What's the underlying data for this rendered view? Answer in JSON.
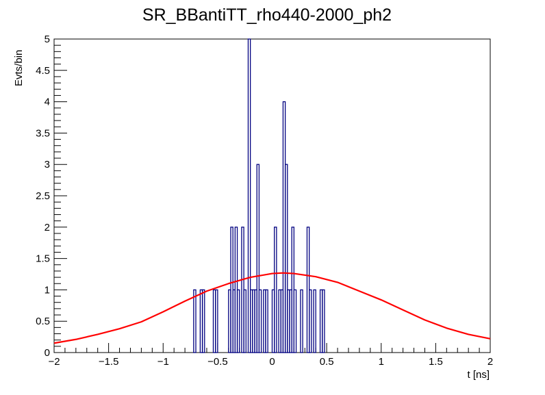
{
  "chart_data": {
    "type": "histogram",
    "title": "SR_BBantiTT_rho440-2000_ph2",
    "xlabel": "t [ns]",
    "ylabel": "Evts/bin",
    "xlim": [
      -2,
      2
    ],
    "ylim": [
      0,
      5
    ],
    "x_ticks": [
      -2,
      -1.5,
      -1,
      -0.5,
      0,
      0.5,
      1,
      1.5,
      2
    ],
    "x_tick_labels": [
      "−2",
      "−1.5",
      "−1",
      "−0.5",
      "0",
      "0.5",
      "1",
      "1.5",
      "2"
    ],
    "y_ticks": [
      0,
      0.5,
      1,
      1.5,
      2,
      2.5,
      3,
      3.5,
      4,
      4.5,
      5
    ],
    "y_tick_labels": [
      "0",
      "0.5",
      "1",
      "1.5",
      "2",
      "2.5",
      "3",
      "3.5",
      "4",
      "4.5",
      "5"
    ],
    "grid": false,
    "legend": "none",
    "bin_width": 0.02,
    "bin_low_edges": [
      -0.72,
      -0.7,
      -0.68,
      -0.66,
      -0.64,
      -0.62,
      -0.6,
      -0.58,
      -0.56,
      -0.54,
      -0.52,
      -0.5,
      -0.48,
      -0.46,
      -0.44,
      -0.42,
      -0.4,
      -0.38,
      -0.36,
      -0.34,
      -0.32,
      -0.3,
      -0.28,
      -0.26,
      -0.24,
      -0.22,
      -0.2,
      -0.18,
      -0.16,
      -0.14,
      -0.12,
      -0.1,
      -0.08,
      -0.06,
      -0.04,
      -0.02,
      0,
      0.02,
      0.04,
      0.06,
      0.08,
      0.1,
      0.12,
      0.14,
      0.16,
      0.18,
      0.2,
      0.22,
      0.24,
      0.26,
      0.28,
      0.3,
      0.32,
      0.34,
      0.36,
      0.38,
      0.4,
      0.42,
      0.44,
      0.46,
      0.48,
      0.5,
      0.52,
      0.54,
      0.56,
      0.58,
      0.6,
      0.62,
      0.64,
      0.66,
      0.68,
      0.7,
      0.72,
      0.74,
      0.76,
      0.78,
      0.8
    ],
    "counts": [
      1,
      0,
      0,
      1,
      1,
      0,
      0,
      0,
      0,
      1,
      1,
      0,
      0,
      0,
      0,
      0,
      1,
      2,
      1,
      2,
      1,
      0,
      2,
      1,
      0,
      5,
      1,
      1,
      1,
      3,
      1,
      0,
      1,
      1,
      0,
      0,
      1,
      2,
      0,
      1,
      1,
      4,
      3,
      1,
      1,
      2,
      1,
      0,
      0,
      1,
      0,
      0,
      2,
      1,
      0,
      1,
      0,
      0,
      1,
      1,
      0,
      0,
      0,
      0,
      0,
      0,
      0,
      0,
      0,
      0,
      0,
      0,
      0,
      0,
      0,
      0,
      0
    ],
    "histogram_color": "#000080",
    "fit_curve": {
      "type": "line",
      "color": "#ff0000",
      "x": [
        -2,
        -1.8,
        -1.6,
        -1.4,
        -1.2,
        -1,
        -0.8,
        -0.6,
        -0.4,
        -0.2,
        0,
        0.1,
        0.2,
        0.4,
        0.6,
        0.8,
        1,
        1.2,
        1.4,
        1.6,
        1.8,
        2
      ],
      "y": [
        0.15,
        0.21,
        0.29,
        0.38,
        0.49,
        0.65,
        0.82,
        0.98,
        1.1,
        1.2,
        1.26,
        1.27,
        1.26,
        1.21,
        1.12,
        0.98,
        0.84,
        0.68,
        0.52,
        0.39,
        0.29,
        0.22
      ]
    }
  }
}
